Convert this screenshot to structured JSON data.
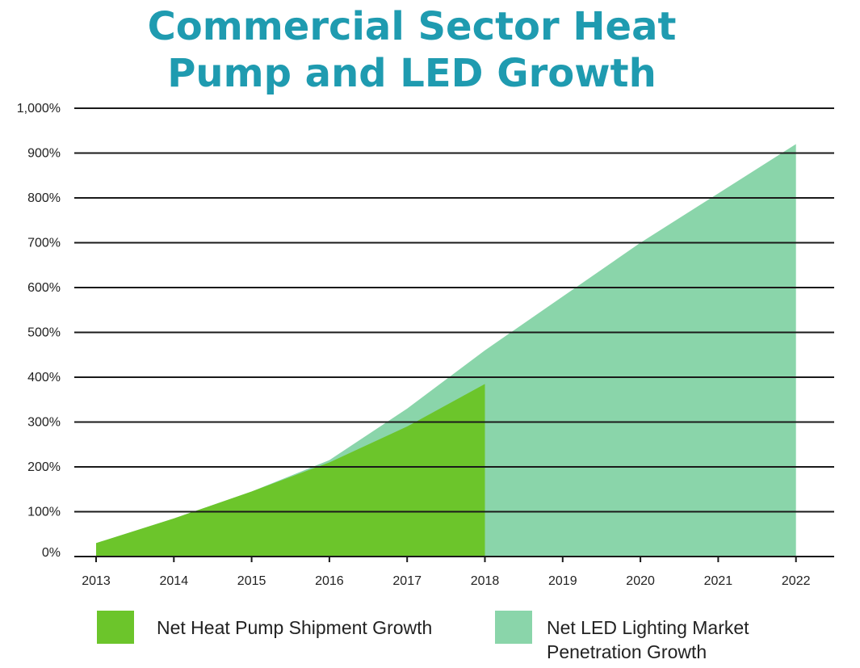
{
  "title_line1": "Commercial Sector Heat",
  "title_line2": "Pump and LED Growth",
  "colors": {
    "title": "#1f9bb0",
    "heat_pump": "#6cc52b",
    "led": "#8ad5aa",
    "grid": "#1a1a1a"
  },
  "legend": {
    "heat_pump_label": "Net Heat Pump Shipment Growth",
    "led_label_line1": "Net LED Lighting Market",
    "led_label_line2": "Penetration Growth"
  },
  "chart_data": {
    "type": "area",
    "title": "Commercial Sector Heat Pump and LED Growth",
    "categories": [
      "2013",
      "2014",
      "2015",
      "2016",
      "2017",
      "2018",
      "2019",
      "2020",
      "2021",
      "2022"
    ],
    "y_tick_labels": [
      "0%",
      "100%",
      "200%",
      "300%",
      "400%",
      "500%",
      "600%",
      "700%",
      "800%",
      "900%",
      "1,000%"
    ],
    "ylim": [
      0,
      1000
    ],
    "grid": true,
    "legend_position": "bottom",
    "series": [
      {
        "name": "Net LED Lighting Market Penetration Growth",
        "color": "#8ad5aa",
        "values": [
          30,
          85,
          145,
          215,
          330,
          460,
          580,
          700,
          810,
          920
        ]
      },
      {
        "name": "Net Heat Pump Shipment Growth",
        "color": "#6cc52b",
        "values": [
          30,
          85,
          145,
          210,
          290,
          385,
          null,
          null,
          null,
          null
        ]
      }
    ]
  }
}
